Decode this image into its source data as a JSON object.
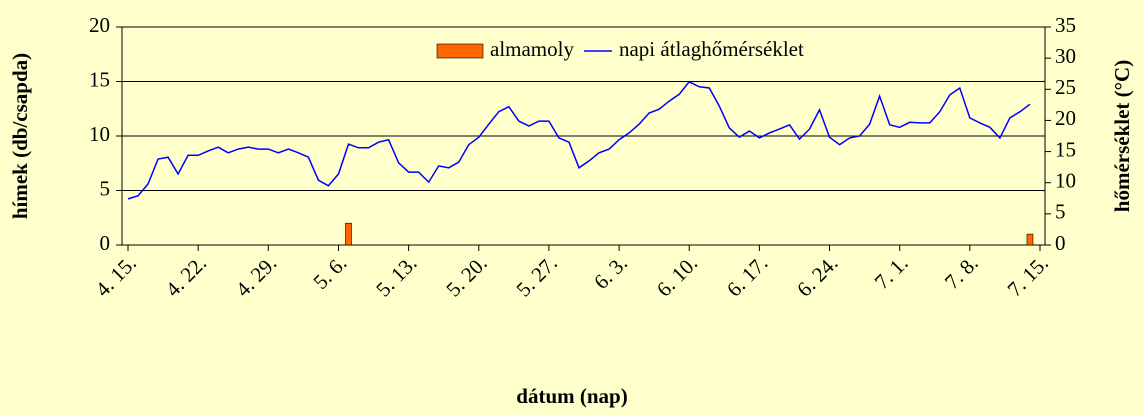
{
  "chart_data": {
    "type": "bar-line",
    "xlabel": "dátum (nap)",
    "ylabel": "hímek (db/csapda)",
    "y2label": "hőmérséklet (°C)",
    "categories": [
      "4. 15.",
      null,
      null,
      null,
      null,
      null,
      null,
      "4. 22.",
      null,
      null,
      null,
      null,
      null,
      null,
      "4. 29.",
      null,
      null,
      null,
      null,
      null,
      null,
      "5. 6.",
      null,
      null,
      null,
      null,
      null,
      null,
      "5. 13.",
      null,
      null,
      null,
      null,
      null,
      null,
      "5. 20.",
      null,
      null,
      null,
      null,
      null,
      null,
      "5. 27.",
      null,
      null,
      null,
      null,
      null,
      null,
      "6. 3.",
      null,
      null,
      null,
      null,
      null,
      null,
      "6. 10.",
      null,
      null,
      null,
      null,
      null,
      null,
      "6. 17.",
      null,
      null,
      null,
      null,
      null,
      null,
      "6. 24.",
      null,
      null,
      null,
      null,
      null,
      null,
      "7. 1.",
      null,
      null,
      null,
      null,
      null,
      null,
      "7. 8.",
      null,
      null,
      null,
      null,
      null,
      null,
      "7. 15."
    ],
    "series": [
      {
        "name": "almamoly",
        "type": "bar",
        "color": "#ff6600",
        "values": [
          null,
          null,
          null,
          null,
          null,
          null,
          null,
          null,
          null,
          null,
          null,
          null,
          null,
          null,
          null,
          null,
          null,
          null,
          null,
          null,
          null,
          null,
          2,
          null,
          null,
          null,
          null,
          null,
          null,
          null,
          null,
          null,
          null,
          null,
          null,
          null,
          null,
          null,
          null,
          null,
          null,
          null,
          null,
          null,
          null,
          null,
          null,
          null,
          null,
          null,
          null,
          null,
          null,
          null,
          null,
          null,
          null,
          null,
          null,
          null,
          null,
          null,
          null,
          null,
          null,
          null,
          null,
          null,
          null,
          null,
          null,
          null,
          null,
          null,
          null,
          null,
          null,
          null,
          null,
          null,
          null,
          null,
          null,
          null,
          null,
          null,
          null,
          null,
          null,
          null,
          1,
          null
        ]
      },
      {
        "name": "napi átlaghőmérséklet",
        "type": "line",
        "color": "#0000ff",
        "axis": "y2",
        "values": [
          7.4,
          7.9,
          9.8,
          13.8,
          14.1,
          11.4,
          14.4,
          14.4,
          15.1,
          15.7,
          14.8,
          15.4,
          15.7,
          15.4,
          15.4,
          14.8,
          15.4,
          14.8,
          14.1,
          10.4,
          9.5,
          11.4,
          16.2,
          15.6,
          15.6,
          16.5,
          16.9,
          13.2,
          11.7,
          11.7,
          10.1,
          12.7,
          12.4,
          13.3,
          16.1,
          17.3,
          19.4,
          21.4,
          22.2,
          19.9,
          19.1,
          19.9,
          19.9,
          17.2,
          16.5,
          12.4,
          13.5,
          14.8,
          15.4,
          16.9,
          18.0,
          19.4,
          21.2,
          21.8,
          23.1,
          24.2,
          26.2,
          25.4,
          25.2,
          22.3,
          18.8,
          17.3,
          18.3,
          17.2,
          18.0,
          18.6,
          19.3,
          17.0,
          18.6,
          21.7,
          17.3,
          16.1,
          17.2,
          17.5,
          19.4,
          23.9,
          19.3,
          18.9,
          19.7,
          19.6,
          19.6,
          21.4,
          24.1,
          25.2,
          20.4,
          19.6,
          18.9,
          17.2,
          20.4,
          21.4,
          22.6,
          null
        ]
      }
    ],
    "ylim": [
      0,
      20
    ],
    "yticks": [
      0,
      5,
      10,
      15,
      20
    ],
    "y2lim": [
      0,
      35
    ],
    "y2ticks": [
      0,
      5,
      10,
      15,
      20,
      25,
      30,
      35
    ],
    "grid": true,
    "legend": "top"
  }
}
